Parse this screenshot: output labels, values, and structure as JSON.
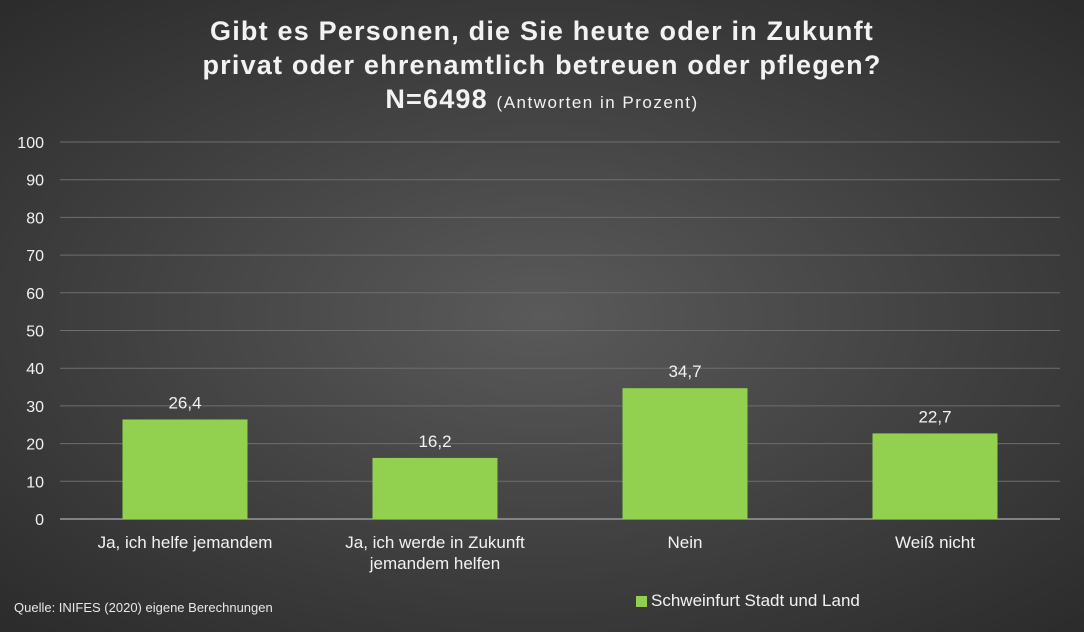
{
  "chart_data": {
    "type": "bar",
    "title_lines": [
      "Gibt es Personen, die Sie heute oder in Zukunft",
      "privat oder ehrenamtlich betreuen oder pflegen?"
    ],
    "title_n": "N=6498",
    "title_unit": "(Antworten in Prozent)",
    "categories": [
      [
        "Ja, ich helfe jemandem"
      ],
      [
        "Ja, ich werde in Zukunft",
        "jemandem helfen"
      ],
      [
        "Nein"
      ],
      [
        "Weiß nicht"
      ]
    ],
    "series": [
      {
        "name": "Schweinfurt Stadt und Land",
        "values": [
          26.4,
          16.2,
          34.7,
          22.7
        ],
        "labels": [
          "26,4",
          "16,2",
          "34,7",
          "22,7"
        ],
        "color": "#92d050"
      }
    ],
    "ylim": [
      0,
      100
    ],
    "yticks": [
      "0",
      "10",
      "20",
      "30",
      "40",
      "50",
      "60",
      "70",
      "80",
      "90",
      "100"
    ],
    "grid": true,
    "legend": "bottom-right",
    "source": "Quelle: INIFES (2020) eigene Berechnungen"
  }
}
